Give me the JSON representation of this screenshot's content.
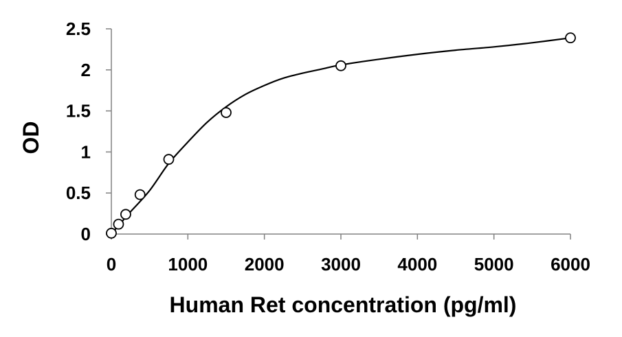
{
  "chart_data": {
    "type": "scatter",
    "title": "",
    "xlabel": "Human Ret concentration (pg/ml)",
    "ylabel": "OD",
    "xlim": [
      0,
      6000
    ],
    "ylim": [
      0,
      2.5
    ],
    "x_ticks": [
      "0",
      "1000",
      "2000",
      "3000",
      "4000",
      "5000",
      "6000"
    ],
    "y_ticks": [
      "0",
      "0.5",
      "1",
      "1.5",
      "2",
      "2.5"
    ],
    "grid": false,
    "legend": "none",
    "colors": {
      "marker_edge": "#000000",
      "marker_fill": "#ffffff",
      "curve": "#000000",
      "axis": "#808080"
    },
    "series": [
      {
        "x": [
          0,
          94,
          188,
          375,
          750,
          1500,
          3000,
          6000
        ],
        "y": [
          0.01,
          0.12,
          0.24,
          0.48,
          0.91,
          1.48,
          2.05,
          2.39
        ]
      }
    ],
    "fit_curve": {
      "x": [
        0,
        100,
        250,
        500,
        750,
        1000,
        1250,
        1500,
        1750,
        2000,
        2250,
        2500,
        2750,
        3000,
        3500,
        4000,
        4500,
        5000,
        5500,
        6000
      ],
      "y": [
        0.0,
        0.11,
        0.27,
        0.53,
        0.86,
        1.12,
        1.36,
        1.55,
        1.7,
        1.81,
        1.9,
        1.96,
        2.01,
        2.06,
        2.13,
        2.19,
        2.24,
        2.28,
        2.33,
        2.39
      ]
    }
  }
}
